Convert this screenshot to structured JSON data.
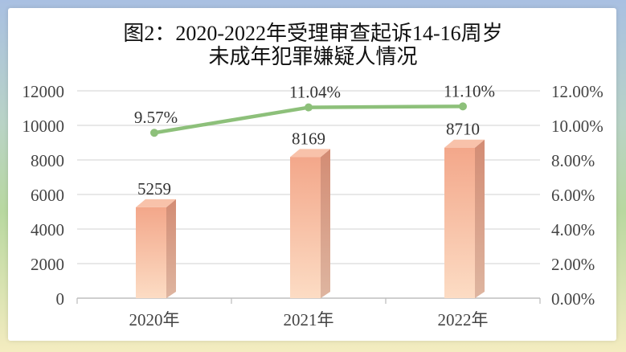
{
  "chart_data": {
    "type": "bar+line",
    "title_line1": "图2：2020-2022年受理审查起诉14-16周岁",
    "title_line2": "未成年犯罪嫌疑人情况",
    "categories": [
      "2020年",
      "2021年",
      "2022年"
    ],
    "series": [
      {
        "type": "bar",
        "axis": "left",
        "values": [
          5259,
          8169,
          8710
        ],
        "labels": [
          "5259",
          "8169",
          "8710"
        ],
        "color": "#f4ae90"
      },
      {
        "type": "line",
        "axis": "right",
        "values": [
          9.57,
          11.04,
          11.1
        ],
        "labels": [
          "9.57%",
          "11.04%",
          "11.10%"
        ],
        "color": "#8dc07a"
      }
    ],
    "y_left": {
      "min": 0,
      "max": 12000,
      "ticks": [
        "0",
        "2000",
        "4000",
        "6000",
        "8000",
        "10000",
        "12000"
      ]
    },
    "y_right": {
      "min": 0,
      "max": 12,
      "ticks": [
        "0.00%",
        "2.00%",
        "4.00%",
        "6.00%",
        "8.00%",
        "10.00%",
        "12.00%"
      ]
    },
    "grid": true,
    "legend": "none"
  }
}
